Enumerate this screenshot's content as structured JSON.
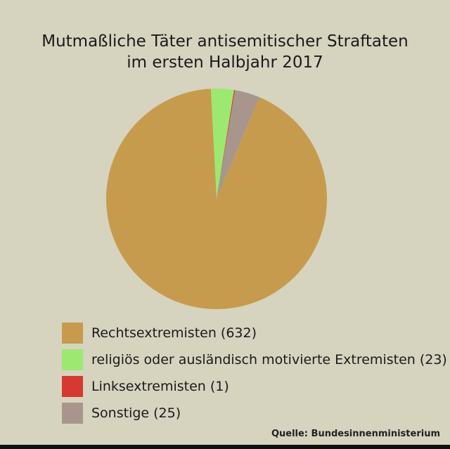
{
  "chart_data": {
    "type": "pie",
    "title_line1": "Mutmaßliche Täter antisemitischer Straftaten",
    "title_line2": "im ersten Halbjahr 2017",
    "slices": [
      {
        "label": "religiös oder ausländisch motivierte Extremisten (23)",
        "value": 23,
        "color": "#9ce871"
      },
      {
        "label": "Linksextremisten (1)",
        "value": 1,
        "color": "#d5392f"
      },
      {
        "label": "Sonstige (25)",
        "value": 25,
        "color": "#a8968d"
      },
      {
        "label": "Rechtsextremisten (632)",
        "value": 632,
        "color": "#c79b4e"
      }
    ],
    "legend_order": [
      3,
      0,
      1,
      2
    ],
    "start_angle_deg": -3,
    "source": "Quelle: Bundesinnenministerium"
  }
}
